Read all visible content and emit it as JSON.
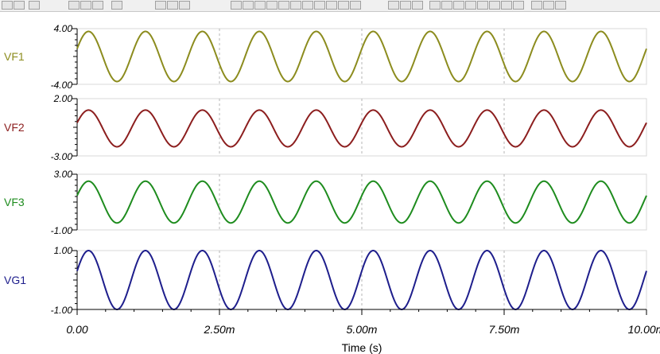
{
  "chart_data": {
    "type": "line",
    "xlabel": "Time (s)",
    "xlim": [
      0,
      0.01
    ],
    "x_ticks": [
      {
        "value": 0,
        "label": "0.00"
      },
      {
        "value": 0.0025,
        "label": "2.50m"
      },
      {
        "value": 0.005,
        "label": "5.00m"
      },
      {
        "value": 0.0075,
        "label": "7.50m"
      },
      {
        "value": 0.01,
        "label": "10.00m"
      }
    ],
    "grid": "vertical dashed at x ticks",
    "series": [
      {
        "name": "VF1",
        "color": "#8c8c1e",
        "ylim": [
          -4,
          4
        ],
        "ytick_labels": [
          "4.00",
          "-4.00"
        ],
        "amplitude": 3.6,
        "offset": 0,
        "frequency_hz": 1000,
        "peak_time": 0.0002
      },
      {
        "name": "VF2",
        "color": "#8c1e1e",
        "ylim": [
          -3,
          2
        ],
        "ytick_labels": [
          "2.00",
          "-3.00"
        ],
        "amplitude": 1.6,
        "offset": -0.6,
        "frequency_hz": 1000,
        "peak_time": 0.0002
      },
      {
        "name": "VF3",
        "color": "#1e8c1e",
        "ylim": [
          -1,
          3
        ],
        "ytick_labels": [
          "3.00",
          "-1.00"
        ],
        "amplitude": 1.5,
        "offset": 1.0,
        "frequency_hz": 1000,
        "peak_time": 0.0002
      },
      {
        "name": "VG1",
        "color": "#1e1e8c",
        "ylim": [
          -1,
          1
        ],
        "ytick_labels": [
          "1.00",
          "-1.00"
        ],
        "amplitude": 1.0,
        "offset": 0,
        "frequency_hz": 1000,
        "peak_time": 0.0002
      }
    ]
  }
}
